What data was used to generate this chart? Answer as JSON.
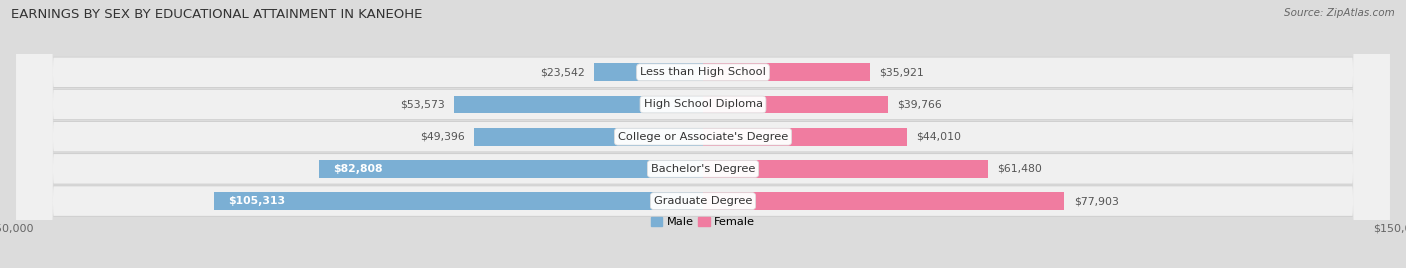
{
  "title": "EARNINGS BY SEX BY EDUCATIONAL ATTAINMENT IN KANEOHE",
  "source": "Source: ZipAtlas.com",
  "categories": [
    "Less than High School",
    "High School Diploma",
    "College or Associate's Degree",
    "Bachelor's Degree",
    "Graduate Degree"
  ],
  "male_values": [
    23542,
    53573,
    49396,
    82808,
    105313
  ],
  "female_values": [
    35921,
    39766,
    44010,
    61480,
    77903
  ],
  "male_color": "#7bafd4",
  "female_color": "#f07ca0",
  "bg_color": "#dcdcdc",
  "row_bg_color": "#f0f0f0",
  "xlim": 150000,
  "bar_height": 0.55,
  "title_fontsize": 9.5,
  "label_fontsize": 8.2,
  "value_fontsize": 7.8,
  "tick_fontsize": 8.0
}
